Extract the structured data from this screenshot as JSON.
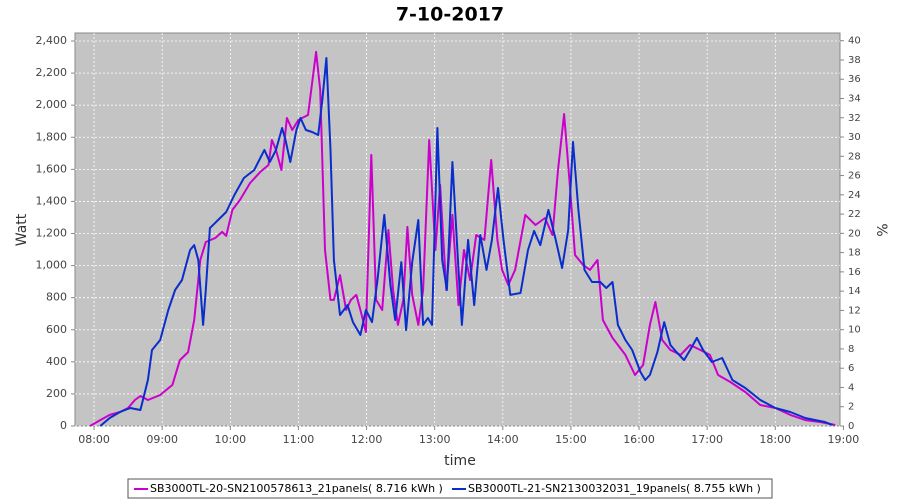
{
  "chart_data": {
    "type": "line",
    "title": "7-10-2017",
    "x_label": "time",
    "y_label": "Watt",
    "y2_label": "%",
    "grid": true,
    "legend": "bottom",
    "xlim": [
      7.72,
      18.95
    ],
    "xticks": [
      {
        "value": 8,
        "label": "08:00"
      },
      {
        "value": 9,
        "label": "09:00"
      },
      {
        "value": 10,
        "label": "10:00"
      },
      {
        "value": 11,
        "label": "11:00"
      },
      {
        "value": 12,
        "label": "12:00"
      },
      {
        "value": 13,
        "label": "13:00"
      },
      {
        "value": 14,
        "label": "14:00"
      },
      {
        "value": 15,
        "label": "15:00"
      },
      {
        "value": 16,
        "label": "16:00"
      },
      {
        "value": 17,
        "label": "17:00"
      },
      {
        "value": 18,
        "label": "18:00"
      },
      {
        "value": 19,
        "label": "19:00"
      }
    ],
    "ylim": [
      0,
      2450
    ],
    "yticks": [
      0,
      200,
      400,
      600,
      800,
      {
        "value": 1000,
        "label": "1,000"
      },
      {
        "value": 1200,
        "label": "1,200"
      },
      {
        "value": 1400,
        "label": "1,400"
      },
      {
        "value": 1600,
        "label": "1,600"
      },
      {
        "value": 1800,
        "label": "1,800"
      },
      {
        "value": 2000,
        "label": "2,000"
      },
      {
        "value": 2200,
        "label": "2,200"
      },
      {
        "value": 2400,
        "label": "2,400"
      }
    ],
    "y2lim": [
      0,
      40.8
    ],
    "y2ticks": [
      0,
      2,
      4,
      6,
      8,
      10,
      12,
      14,
      16,
      18,
      20,
      22,
      24,
      26,
      28,
      30,
      32,
      34,
      36,
      38,
      40
    ],
    "series": [
      {
        "name": "SB3000TL-20-SN2100578613_21panels( 8.716 kWh )",
        "color": "#cc00cc",
        "x": [
          7.94,
          8.09,
          8.23,
          8.38,
          8.5,
          8.6,
          8.68,
          8.79,
          8.97,
          9.15,
          9.26,
          9.38,
          9.47,
          9.56,
          9.64,
          9.78,
          9.88,
          9.94,
          10.03,
          10.14,
          10.29,
          10.44,
          10.56,
          10.61,
          10.67,
          10.75,
          10.83,
          10.91,
          11.0,
          11.14,
          11.26,
          11.32,
          11.39,
          11.47,
          11.52,
          11.61,
          11.7,
          11.77,
          11.85,
          11.91,
          11.99,
          12.07,
          12.14,
          12.23,
          12.32,
          12.39,
          12.46,
          12.54,
          12.6,
          12.67,
          12.76,
          12.83,
          12.92,
          13.01,
          13.08,
          13.17,
          13.26,
          13.35,
          13.43,
          13.52,
          13.61,
          13.73,
          13.83,
          13.92,
          13.99,
          14.08,
          14.18,
          14.33,
          14.48,
          14.62,
          14.73,
          14.81,
          14.9,
          14.99,
          15.06,
          15.18,
          15.28,
          15.39,
          15.47,
          15.61,
          15.8,
          15.94,
          16.06,
          16.16,
          16.24,
          16.34,
          16.46,
          16.61,
          16.75,
          16.9,
          17.04,
          17.16,
          17.34,
          17.56,
          17.78,
          18.0,
          18.22,
          18.44,
          18.66,
          18.88
        ],
        "values": [
          0,
          37,
          69,
          87,
          112,
          162,
          187,
          162,
          193,
          256,
          411,
          461,
          661,
          1035,
          1147,
          1172,
          1210,
          1185,
          1347,
          1409,
          1515,
          1584,
          1627,
          1783,
          1721,
          1596,
          1920,
          1845,
          1908,
          1939,
          2332,
          2095,
          1097,
          786,
          786,
          941,
          723,
          786,
          817,
          723,
          586,
          1690,
          786,
          723,
          1222,
          848,
          630,
          786,
          1241,
          817,
          630,
          848,
          1783,
          1097,
          1503,
          848,
          1316,
          754,
          1097,
          910,
          1191,
          1160,
          1658,
          1160,
          973,
          879,
          973,
          1316,
          1253,
          1297,
          1191,
          1596,
          1945,
          1472,
          1066,
          1004,
          973,
          1035,
          661,
          549,
          443,
          318,
          380,
          630,
          773,
          536,
          474,
          443,
          505,
          474,
          443,
          318,
          274,
          212,
          131,
          112,
          69,
          37,
          25,
          6
        ]
      },
      {
        "name": "SB3000TL-21-SN2130032031_19panels( 8.755 kWh )",
        "color": "#0a2ecc",
        "x": [
          8.09,
          8.23,
          8.38,
          8.53,
          8.68,
          8.79,
          8.85,
          8.97,
          9.09,
          9.19,
          9.29,
          9.41,
          9.47,
          9.53,
          9.6,
          9.64,
          9.7,
          9.82,
          9.94,
          10.06,
          10.2,
          10.35,
          10.5,
          10.58,
          10.67,
          10.76,
          10.81,
          10.88,
          10.97,
          11.03,
          11.11,
          11.2,
          11.29,
          11.35,
          11.41,
          11.47,
          11.52,
          11.61,
          11.72,
          11.8,
          11.91,
          11.99,
          12.08,
          12.16,
          12.26,
          12.35,
          12.42,
          12.51,
          12.58,
          12.67,
          12.76,
          12.83,
          12.9,
          12.96,
          13.04,
          13.11,
          13.18,
          13.26,
          13.35,
          13.4,
          13.49,
          13.58,
          13.67,
          13.76,
          13.84,
          13.93,
          14.01,
          14.11,
          14.26,
          14.37,
          14.46,
          14.55,
          14.67,
          14.77,
          14.87,
          14.96,
          15.03,
          15.11,
          15.2,
          15.31,
          15.43,
          15.52,
          15.61,
          15.69,
          15.8,
          15.9,
          16.02,
          16.09,
          16.16,
          16.27,
          16.37,
          16.46,
          16.55,
          16.66,
          16.75,
          16.85,
          16.94,
          17.07,
          17.22,
          17.37,
          17.56,
          17.78,
          18.0,
          18.22,
          18.44,
          18.59,
          18.73,
          18.84
        ],
        "values": [
          0,
          50,
          87,
          112,
          100,
          287,
          474,
          536,
          723,
          848,
          910,
          1097,
          1128,
          1035,
          630,
          848,
          1234,
          1284,
          1334,
          1440,
          1546,
          1596,
          1721,
          1646,
          1721,
          1858,
          1783,
          1646,
          1845,
          1920,
          1845,
          1833,
          1814,
          2032,
          2294,
          1721,
          1035,
          692,
          754,
          648,
          567,
          723,
          648,
          910,
          1316,
          879,
          661,
          1022,
          598,
          1022,
          1284,
          630,
          673,
          630,
          1858,
          1035,
          848,
          1646,
          973,
          630,
          1160,
          754,
          1191,
          973,
          1160,
          1484,
          1160,
          817,
          829,
          1097,
          1216,
          1128,
          1347,
          1172,
          985,
          1222,
          1771,
          1347,
          973,
          898,
          898,
          860,
          898,
          630,
          536,
          474,
          337,
          287,
          318,
          461,
          648,
          505,
          461,
          411,
          474,
          549,
          474,
          399,
          424,
          287,
          237,
          162,
          112,
          87,
          50,
          37,
          25,
          6
        ]
      }
    ]
  }
}
